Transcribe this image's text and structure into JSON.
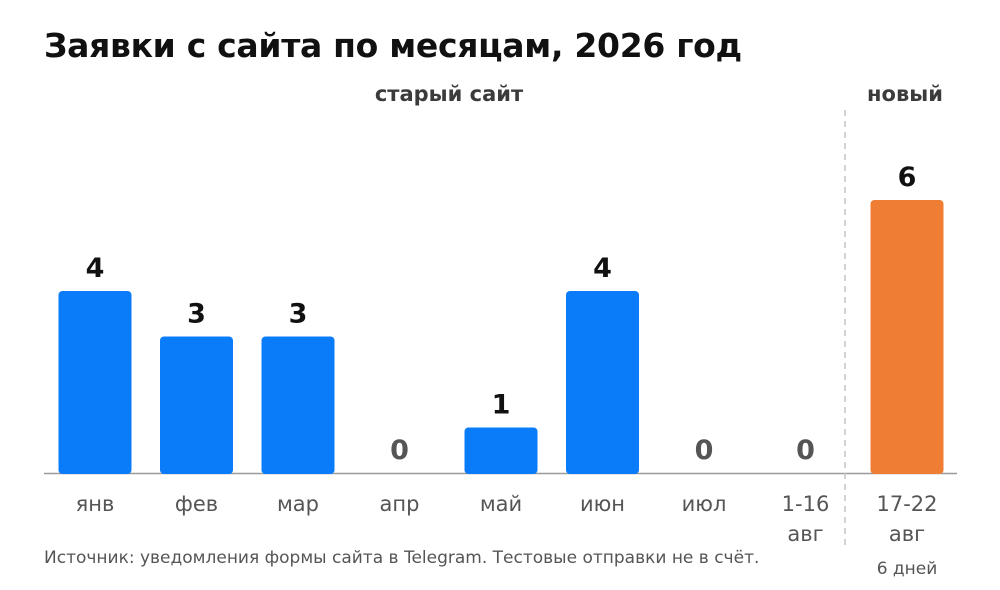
{
  "title": "Заявки с сайта по месяцам, 2026 год",
  "groups": {
    "old": "старый сайт",
    "new": "новый"
  },
  "source_note": "Источник: уведомления формы сайта в Telegram. Тестовые отправки не в счёт.",
  "colors": {
    "old_bar": "#0a7cfa",
    "new_bar": "#ef7d33",
    "zero_label": "#555555",
    "value_label": "#111111",
    "axis": "#9a9a9a",
    "divider": "#c4c4c4"
  },
  "chart_data": {
    "type": "bar",
    "title": "Заявки с сайта по месяцам, 2026 год",
    "xlabel": "",
    "ylabel": "",
    "ylim": [
      0,
      6
    ],
    "grid": false,
    "categories": [
      {
        "label": [
          "янв"
        ],
        "value": 4,
        "group": "old"
      },
      {
        "label": [
          "фев"
        ],
        "value": 3,
        "group": "old"
      },
      {
        "label": [
          "мар"
        ],
        "value": 3,
        "group": "old"
      },
      {
        "label": [
          "апр"
        ],
        "value": 0,
        "group": "old"
      },
      {
        "label": [
          "май"
        ],
        "value": 1,
        "group": "old"
      },
      {
        "label": [
          "июн"
        ],
        "value": 4,
        "group": "old"
      },
      {
        "label": [
          "июл"
        ],
        "value": 0,
        "group": "old"
      },
      {
        "label": [
          "1-16",
          "авг"
        ],
        "value": 0,
        "group": "old"
      },
      {
        "label": [
          "17-22",
          "авг"
        ],
        "sublabel": "6 дней",
        "value": 6,
        "group": "new"
      }
    ]
  }
}
